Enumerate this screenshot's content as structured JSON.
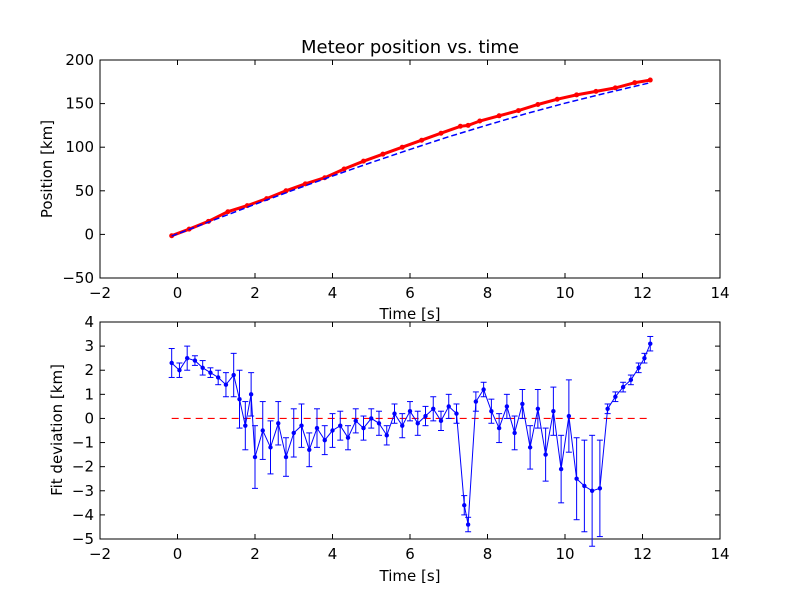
{
  "figure": {
    "title": "Meteor position vs. time"
  },
  "chart_data": [
    {
      "type": "line",
      "title": "Meteor position vs. time",
      "xlabel": "Time [s]",
      "ylabel": "Position [km]",
      "xlim": [
        -2,
        14
      ],
      "ylim": [
        -50,
        200
      ],
      "xticks": [
        "−2",
        "0",
        "2",
        "4",
        "6",
        "8",
        "10",
        "12",
        "14"
      ],
      "yticks": [
        "−50",
        "0",
        "50",
        "100",
        "150",
        "200"
      ],
      "grid": false,
      "colors": {
        "observed": "#ff0000",
        "fit": "#0000ff"
      },
      "series": [
        {
          "role": "observed",
          "style": "red points",
          "x": [
            -0.15,
            0.3,
            0.8,
            1.3,
            1.8,
            2.3,
            2.8,
            3.3,
            3.8,
            4.3,
            4.8,
            5.3,
            5.8,
            6.3,
            6.8,
            7.3,
            7.5,
            7.8,
            8.3,
            8.8,
            9.3,
            9.8,
            10.3,
            10.8,
            11.3,
            11.8,
            12.2
          ],
          "y": [
            -1.5,
            6,
            15,
            26,
            33,
            41,
            50,
            58,
            65,
            75,
            84,
            92,
            100,
            108,
            116,
            124,
            125,
            130,
            136,
            142,
            149,
            155,
            160,
            164,
            168,
            174,
            177
          ]
        },
        {
          "role": "fit",
          "style": "blue line",
          "x": [
            -0.15,
            1,
            2,
            3,
            4,
            5,
            6,
            7,
            8,
            9,
            10,
            11,
            12.2
          ],
          "y": [
            -2,
            17.5,
            34.5,
            51,
            67,
            82.5,
            97.5,
            112,
            125.5,
            138.5,
            150.5,
            161.5,
            174
          ]
        }
      ]
    },
    {
      "type": "line",
      "xlabel": "Time [s]",
      "ylabel": "Fit deviation [km]",
      "xlim": [
        -2,
        14
      ],
      "ylim": [
        -5,
        4
      ],
      "xticks": [
        "−2",
        "0",
        "2",
        "4",
        "6",
        "8",
        "10",
        "12",
        "14"
      ],
      "yticks": [
        "−5",
        "−4",
        "−3",
        "−2",
        "−1",
        "0",
        "1",
        "2",
        "3",
        "4"
      ],
      "grid": false,
      "colors": {
        "residual": "#0000ff",
        "zero_line": "#ff0000"
      },
      "reference_line": {
        "y": 0,
        "x_from": -0.15,
        "x_to": 12.2,
        "style": "red dashed"
      },
      "series": [
        {
          "role": "residual",
          "style": "blue points with error bars",
          "x": [
            -0.15,
            0.05,
            0.25,
            0.45,
            0.65,
            0.85,
            1.05,
            1.25,
            1.45,
            1.6,
            1.75,
            1.9,
            2.0,
            2.2,
            2.4,
            2.6,
            2.8,
            3.0,
            3.2,
            3.4,
            3.6,
            3.8,
            4.0,
            4.2,
            4.4,
            4.6,
            4.8,
            5.0,
            5.2,
            5.4,
            5.6,
            5.8,
            6.0,
            6.2,
            6.4,
            6.6,
            6.8,
            7.0,
            7.2,
            7.4,
            7.5,
            7.7,
            7.9,
            8.1,
            8.3,
            8.5,
            8.7,
            8.9,
            9.1,
            9.3,
            9.5,
            9.7,
            9.9,
            10.1,
            10.3,
            10.5,
            10.7,
            10.9,
            11.1,
            11.3,
            11.5,
            11.7,
            11.9,
            12.05,
            12.2
          ],
          "y": [
            2.3,
            2.0,
            2.5,
            2.4,
            2.1,
            1.9,
            1.7,
            1.4,
            1.8,
            0.8,
            -0.3,
            1.0,
            -1.6,
            -0.5,
            -1.2,
            -0.2,
            -1.6,
            -0.6,
            -0.3,
            -1.3,
            -0.4,
            -0.9,
            -0.5,
            -0.3,
            -0.8,
            -0.1,
            -0.4,
            0.0,
            -0.2,
            -0.7,
            0.2,
            -0.3,
            0.3,
            -0.2,
            0.1,
            0.4,
            -0.1,
            0.5,
            0.2,
            -3.6,
            -4.4,
            0.7,
            1.2,
            0.3,
            -0.4,
            0.5,
            -0.6,
            0.6,
            -1.2,
            0.4,
            -1.5,
            0.3,
            -2.1,
            0.1,
            -2.5,
            -2.8,
            -3.0,
            -2.9,
            0.4,
            0.9,
            1.3,
            1.6,
            2.1,
            2.5,
            3.1
          ],
          "error": [
            0.6,
            0.3,
            0.5,
            0.2,
            0.3,
            0.2,
            0.3,
            0.5,
            0.9,
            1.2,
            1.0,
            0.9,
            1.3,
            1.2,
            1.1,
            0.9,
            0.8,
            1.0,
            0.9,
            0.7,
            0.8,
            0.6,
            0.7,
            0.6,
            0.5,
            0.5,
            0.5,
            0.4,
            0.5,
            0.4,
            0.4,
            0.5,
            0.4,
            0.5,
            0.4,
            0.5,
            0.4,
            0.5,
            0.4,
            0.4,
            0.3,
            0.4,
            0.3,
            0.5,
            0.6,
            0.5,
            0.7,
            0.6,
            0.9,
            0.8,
            1.1,
            1.0,
            1.4,
            1.5,
            1.7,
            1.9,
            2.3,
            2.0,
            0.2,
            0.2,
            0.2,
            0.2,
            0.2,
            0.2,
            0.3
          ]
        }
      ]
    }
  ]
}
